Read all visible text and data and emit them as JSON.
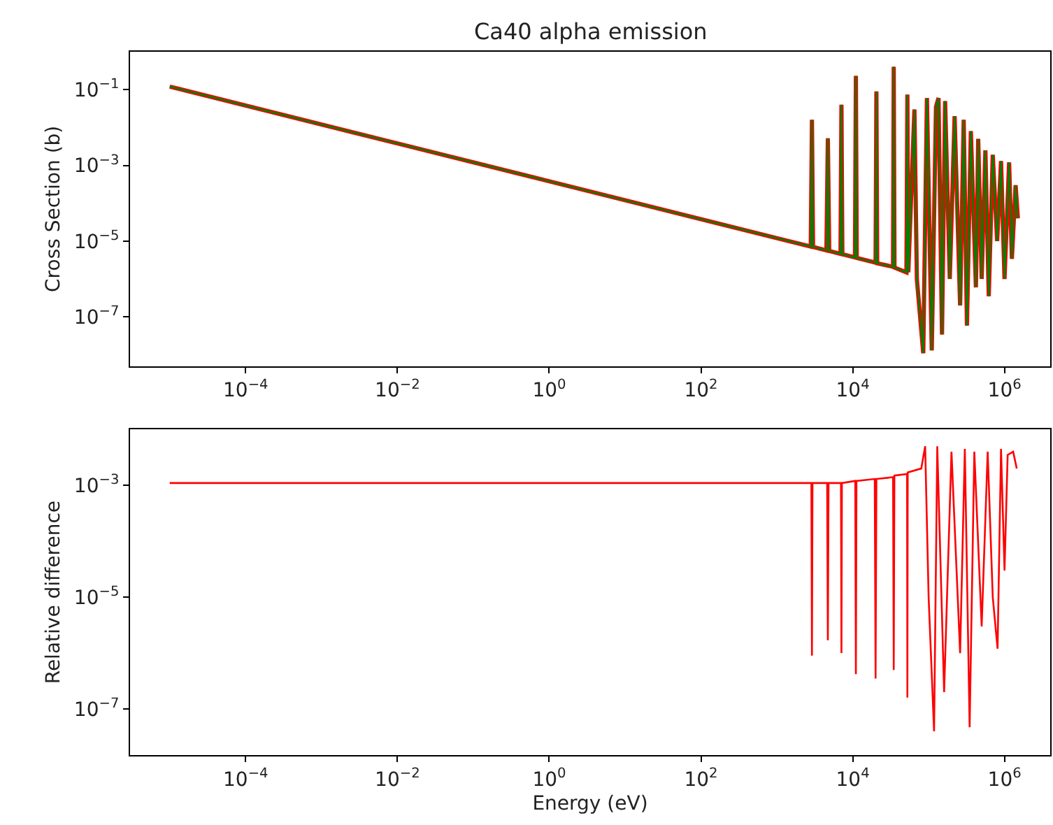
{
  "chart_data": [
    {
      "type": "line",
      "title": "Ca40 alpha emission",
      "ylabel": "Cross Section (b)",
      "log": "xy",
      "marker": "none",
      "line_style": "solid",
      "xlim": [
        3e-06,
        4000000.0
      ],
      "ylim": [
        5e-09,
        1
      ],
      "xticks": [
        {
          "value": 0.0001,
          "label": "10$^{−4}$"
        },
        {
          "value": 0.01,
          "label": "10$^{−2}$"
        },
        {
          "value": 1,
          "label": "10$^{0}$"
        },
        {
          "value": 100,
          "label": "10$^{2}$"
        },
        {
          "value": 10000,
          "label": "10$^{4}$"
        },
        {
          "value": 1000000,
          "label": "10$^{6}$"
        }
      ],
      "yticks": [
        {
          "value": 0.1,
          "label": "10$^{−1}$"
        },
        {
          "value": 0.001,
          "label": "10$^{−3}$"
        },
        {
          "value": 1e-05,
          "label": "10$^{−5}$"
        },
        {
          "value": 1e-07,
          "label": "10$^{−7}$"
        }
      ],
      "x": [
        1e-05,
        0.01,
        10,
        1000,
        2800,
        2900,
        3000,
        4500,
        4700,
        4900,
        6900,
        7100,
        7300,
        10700,
        11000,
        11300,
        20000,
        20500,
        21000,
        34000,
        34700,
        35500,
        51000,
        52500,
        54000,
        65000,
        70000,
        85000,
        95000,
        110000,
        125000,
        135000,
        150000,
        165000,
        190000,
        220000,
        260000,
        290000,
        320000,
        360000,
        420000,
        450000,
        500000,
        560000,
        620000,
        700000,
        800000,
        900000,
        1000000,
        1150000,
        1250000,
        1400000,
        1500000
      ],
      "series": [
        {
          "color": "#ff0000",
          "values": [
            0.12,
            0.0038,
            0.00012,
            1.2e-05,
            7.2e-06,
            0.016,
            7e-06,
            5.7e-06,
            0.0052,
            5.5e-06,
            4.6e-06,
            0.04,
            4.5e-06,
            3.7e-06,
            0.23,
            3.6e-06,
            2.7e-06,
            0.09,
            2.6e-06,
            2.1e-06,
            0.4,
            2e-06,
            1.5e-06,
            0.074,
            1.5e-06,
            0.03,
            1e-06,
            1.1e-08,
            0.06,
            1.3e-08,
            0.035,
            0.06,
            3.4e-08,
            0.05,
            1e-06,
            0.02,
            2e-07,
            0.016,
            5.9e-08,
            0.008,
            6e-07,
            0.005,
            1e-06,
            0.0025,
            3.5e-07,
            0.0019,
            1e-05,
            0.0013,
            1e-06,
            0.0012,
            3.4e-06,
            0.0003,
            4e-05
          ]
        },
        {
          "color": "#008000",
          "values": [
            0.12,
            0.0038,
            0.00012,
            1.2e-05,
            7.2e-06,
            0.016,
            7e-06,
            5.7e-06,
            0.0052,
            5.5e-06,
            4.6e-06,
            0.04,
            4.5e-06,
            3.7e-06,
            0.23,
            3.6e-06,
            2.7e-06,
            0.09,
            2.6e-06,
            2.1e-06,
            0.4,
            2e-06,
            1.5e-06,
            0.074,
            1.5e-06,
            0.03,
            1e-06,
            1.1e-08,
            0.06,
            1.3e-08,
            0.035,
            0.06,
            3.4e-08,
            0.05,
            1e-06,
            0.02,
            2e-07,
            0.016,
            5.9e-08,
            0.008,
            6e-07,
            0.005,
            1e-06,
            0.0025,
            3.5e-07,
            0.0019,
            1e-05,
            0.0013,
            1e-06,
            0.0012,
            3.4e-06,
            0.0003,
            4e-05
          ]
        }
      ]
    },
    {
      "type": "line",
      "xlabel": "Energy (eV)",
      "ylabel": "Relative difference",
      "log": "xy",
      "marker": "none",
      "line_style": "solid",
      "xlim": [
        3e-06,
        4000000.0
      ],
      "ylim": [
        1.5e-08,
        0.01
      ],
      "xticks": [
        {
          "value": 0.0001,
          "label": "10$^{−4}$"
        },
        {
          "value": 0.01,
          "label": "10$^{−2}$"
        },
        {
          "value": 1,
          "label": "10$^{0}$"
        },
        {
          "value": 100,
          "label": "10$^{2}$"
        },
        {
          "value": 10000,
          "label": "10$^{4}$"
        },
        {
          "value": 1000000,
          "label": "10$^{6}$"
        }
      ],
      "yticks": [
        {
          "value": 0.001,
          "label": "10$^{−3}$"
        },
        {
          "value": 1e-05,
          "label": "10$^{−5}$"
        },
        {
          "value": 1e-07,
          "label": "10$^{−7}$"
        }
      ],
      "x": [
        1e-05,
        1000,
        2850,
        2900,
        2950,
        4600,
        4700,
        4800,
        7000,
        7100,
        7200,
        10800,
        11000,
        11200,
        19500,
        20000,
        20500,
        34000,
        34700,
        35400,
        52000,
        52500,
        53000,
        80000,
        90000,
        100000,
        118000,
        130000,
        160000,
        200000,
        260000,
        300000,
        347000,
        400000,
        500000,
        600000,
        700000,
        810000,
        900000,
        1000000,
        1100000,
        1300000,
        1450000
      ],
      "series": [
        {
          "color": "#ff0000",
          "values": [
            0.0011,
            0.0011,
            0.0011,
            9e-07,
            0.0011,
            0.0011,
            1.7e-06,
            0.0011,
            0.0011,
            1e-06,
            0.0011,
            0.0012,
            4.2e-07,
            0.0012,
            0.0013,
            3.5e-07,
            0.0013,
            0.0014,
            5e-07,
            0.0015,
            0.0016,
            1.6e-07,
            0.0017,
            0.002,
            0.005,
            1e-05,
            4e-08,
            0.005,
            2e-07,
            0.004,
            1e-06,
            0.0045,
            4.7e-08,
            0.004,
            3e-06,
            0.004,
            1e-05,
            1.2e-06,
            0.0045,
            3e-05,
            0.0035,
            0.004,
            0.002
          ]
        }
      ]
    }
  ]
}
